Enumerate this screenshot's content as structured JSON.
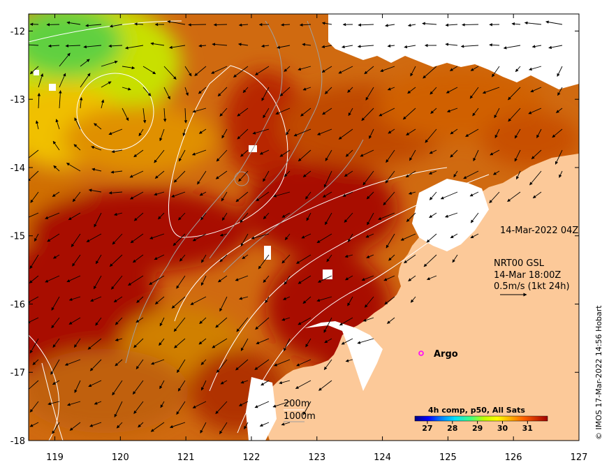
{
  "map": {
    "lon_ticks": [
      "119",
      "120",
      "121",
      "122",
      "123",
      "124",
      "125",
      "126",
      "127"
    ],
    "lat_ticks": [
      "-12",
      "-13",
      "-14",
      "-15",
      "-16",
      "-17",
      "-18"
    ],
    "lon_range": [
      118.6,
      127.0
    ],
    "lat_range": [
      -18.0,
      -11.75
    ],
    "land_color": "#fcc999",
    "cloud_color": "#ffffff"
  },
  "annotations": {
    "composite_time": "14-Mar-2022 04Z",
    "current_source": "NRT00 GSL",
    "current_time": "14-Mar 18:00Z",
    "current_scale": "0.5m/s (1kt 24h)",
    "argo_label": "Argo",
    "isobath_200": "200m",
    "isobath_1000": "1000m",
    "credit": "© IMOS 17-Mar-2022 14:56 Hobart"
  },
  "colorbar": {
    "title": "4h comp, p50, All Sats",
    "ticks": [
      "27",
      "28",
      "29",
      "30",
      "31"
    ],
    "range": [
      26.5,
      31.8
    ],
    "colors": [
      "#000080",
      "#0000ff",
      "#0080ff",
      "#00e0ff",
      "#40ff80",
      "#c0ff00",
      "#ffff00",
      "#ffb000",
      "#ff6000",
      "#d03000",
      "#a00000"
    ]
  },
  "chart_data": {
    "type": "heatmap",
    "title": "4h comp, p50, All Sats",
    "xlabel": "",
    "ylabel": "",
    "xlim": [
      118.6,
      127.0
    ],
    "ylim": [
      -18.0,
      -11.75
    ],
    "value_range": [
      26.5,
      31.8
    ],
    "argo_float": {
      "lon": 124.6,
      "lat": -16.7
    }
  }
}
